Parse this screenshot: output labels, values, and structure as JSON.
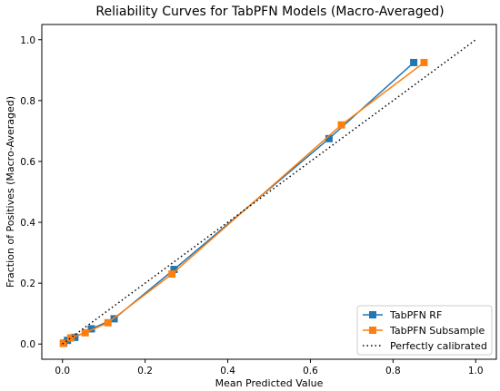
{
  "chart_data": {
    "type": "line",
    "title": "Reliability Curves for TabPFN Models (Macro-Averaged)",
    "xlabel": "Mean Predicted Value",
    "ylabel": "Fraction of Positives (Macro-Averaged)",
    "xlim": [
      -0.05,
      1.05
    ],
    "ylim": [
      -0.05,
      1.05
    ],
    "xticks": [
      "0.0",
      "0.2",
      "0.4",
      "0.6",
      "0.8",
      "1.0"
    ],
    "yticks": [
      "0.0",
      "0.2",
      "0.4",
      "0.6",
      "0.8",
      "1.0"
    ],
    "grid": false,
    "legend_position": "bottom-right",
    "series": [
      {
        "name": "TabPFN RF",
        "color": "#1f77b4",
        "marker": "square",
        "style": "solid",
        "x": [
          0.003,
          0.012,
          0.03,
          0.07,
          0.125,
          0.27,
          0.645,
          0.85
        ],
        "y": [
          0.003,
          0.012,
          0.022,
          0.05,
          0.083,
          0.245,
          0.675,
          0.925
        ]
      },
      {
        "name": "TabPFN Subsample",
        "color": "#ff7f0e",
        "marker": "square",
        "style": "solid",
        "x": [
          0.002,
          0.02,
          0.055,
          0.11,
          0.265,
          0.675,
          0.875
        ],
        "y": [
          0.002,
          0.02,
          0.037,
          0.07,
          0.23,
          0.72,
          0.925
        ]
      },
      {
        "name": "Perfectly calibrated",
        "color": "#000000",
        "marker": "none",
        "style": "dotted",
        "x": [
          0,
          1
        ],
        "y": [
          0,
          1
        ]
      }
    ]
  }
}
